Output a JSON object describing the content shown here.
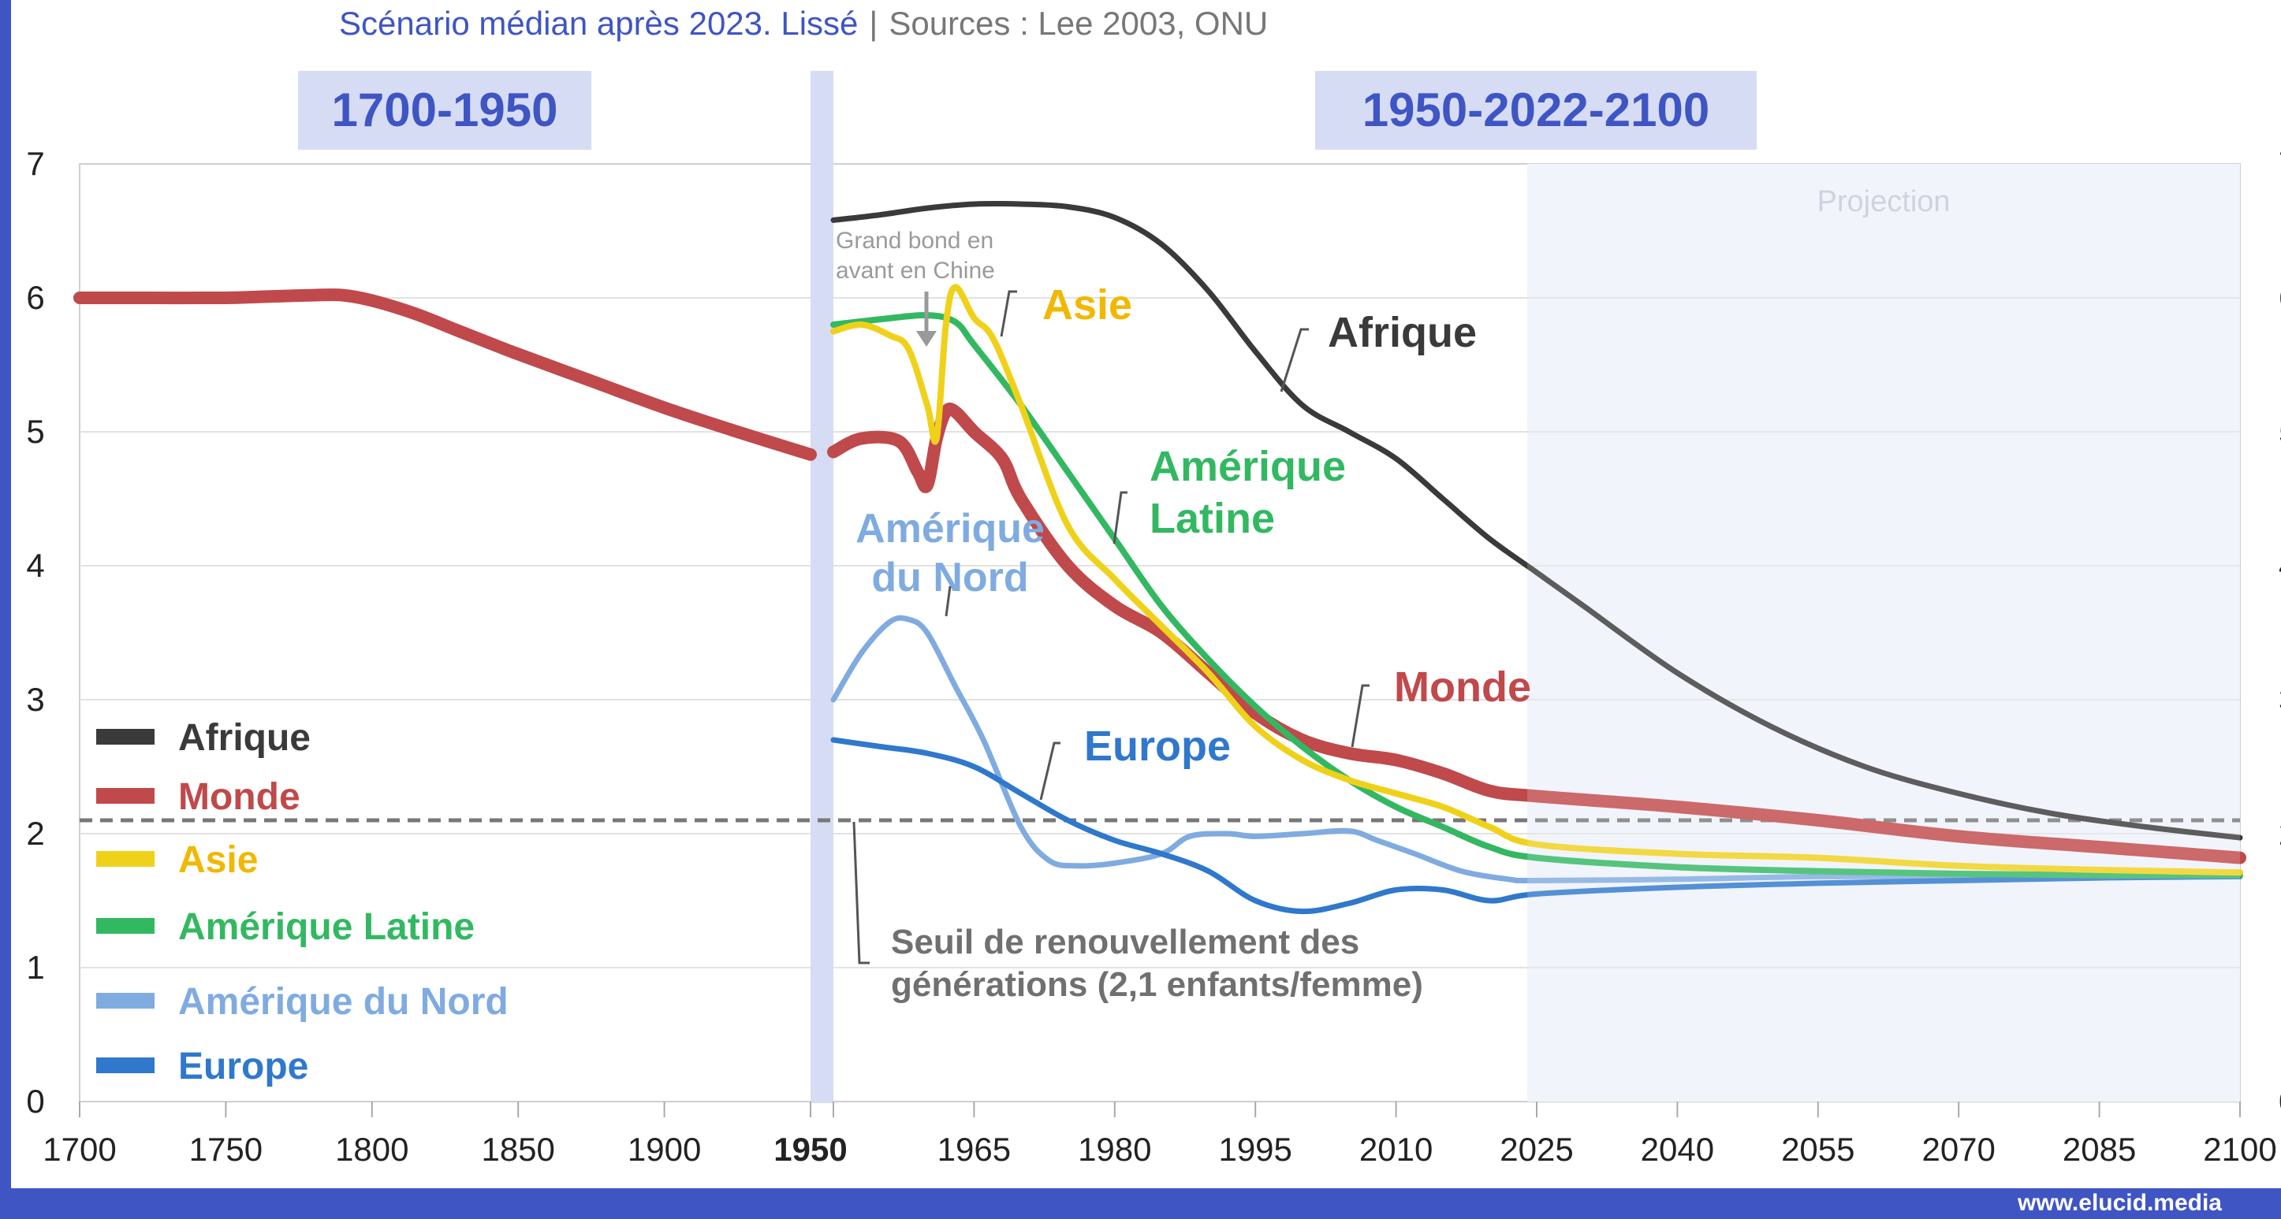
{
  "header": {
    "subtitle": "Scénario médian après 2023. Lissé",
    "separator": "|",
    "sources": "Sources : Lee 2003, ONU",
    "period_left": "1700-1950",
    "period_right": "1950-2022-2100"
  },
  "footer": {
    "brand": "www.elucid.media"
  },
  "colors": {
    "brand": "#3f55c4",
    "Afrique": "#3a3a3a",
    "Monde": "#c0494b",
    "Asie": "#f0d11a",
    "Asie_label": "#f0b800",
    "Amerique_Latine": "#33b862",
    "Amerique_du_Nord": "#7fabe0",
    "Europe": "#2f78cc",
    "threshold": "#777777",
    "projection_bg": "#eef2fa"
  },
  "chart_data": {
    "type": "line",
    "title": "",
    "subtitle": "Scénario médian après 2023. Lissé",
    "xlabel": "",
    "ylabel": "",
    "ylim": [
      0,
      7
    ],
    "yticks": [
      0,
      1,
      2,
      3,
      4,
      5,
      6,
      7
    ],
    "grid": true,
    "legend_position": "bottom-left",
    "panels": [
      {
        "label": "1700-1950",
        "xlim": [
          1700,
          1950
        ],
        "xticks": [
          1700,
          1750,
          1800,
          1850,
          1900,
          1950
        ]
      },
      {
        "label": "1950-2022-2100",
        "xlim": [
          1950,
          2100
        ],
        "xticks": [
          1950,
          1965,
          1980,
          1995,
          2010,
          2025,
          2040,
          2055,
          2070,
          2085,
          2100
        ]
      }
    ],
    "projection": {
      "label": "Projection",
      "from": 2024,
      "to": 2100
    },
    "threshold": {
      "value": 2.1,
      "label": "Seuil de renouvellement des générations (2,1 enfants/femme)"
    },
    "legend": [
      "Afrique",
      "Monde",
      "Asie",
      "Amérique Latine",
      "Amérique du Nord",
      "Europe"
    ],
    "series": [
      {
        "name": "Monde (1700-1950)",
        "key": "Monde",
        "x": [
          1700,
          1725,
          1750,
          1765,
          1780,
          1790,
          1800,
          1815,
          1830,
          1850,
          1875,
          1900,
          1925,
          1950
        ],
        "y": [
          6.0,
          6.0,
          6.0,
          6.01,
          6.02,
          6.02,
          5.98,
          5.88,
          5.75,
          5.58,
          5.38,
          5.18,
          5.0,
          4.83
        ]
      },
      {
        "name": "Afrique",
        "key": "Afrique",
        "x": [
          1950,
          1955,
          1960,
          1965,
          1970,
          1975,
          1980,
          1985,
          1990,
          1995,
          2000,
          2005,
          2010,
          2015,
          2020,
          2025,
          2030,
          2040,
          2050,
          2060,
          2070,
          2080,
          2090,
          2100
        ],
        "y": [
          6.58,
          6.62,
          6.67,
          6.7,
          6.7,
          6.68,
          6.6,
          6.4,
          6.05,
          5.6,
          5.2,
          5.0,
          4.8,
          4.5,
          4.2,
          3.95,
          3.7,
          3.2,
          2.8,
          2.5,
          2.3,
          2.15,
          2.05,
          1.97
        ]
      },
      {
        "name": "Monde",
        "key": "Monde",
        "x": [
          1950,
          1953,
          1957,
          1959,
          1960,
          1961,
          1962,
          1963,
          1965,
          1968,
          1970,
          1975,
          1980,
          1985,
          1990,
          1995,
          2000,
          2005,
          2010,
          2015,
          2020,
          2025,
          2040,
          2055,
          2070,
          2085,
          2100
        ],
        "y": [
          4.85,
          4.95,
          4.93,
          4.7,
          4.6,
          4.95,
          5.15,
          5.15,
          5.0,
          4.8,
          4.5,
          4.0,
          3.7,
          3.5,
          3.2,
          2.9,
          2.7,
          2.6,
          2.55,
          2.45,
          2.32,
          2.28,
          2.2,
          2.1,
          1.98,
          1.9,
          1.82
        ]
      },
      {
        "name": "Asie",
        "key": "Asie",
        "x": [
          1950,
          1953,
          1956,
          1958,
          1960,
          1961,
          1962,
          1963,
          1965,
          1967,
          1970,
          1975,
          1980,
          1985,
          1990,
          1995,
          2000,
          2005,
          2010,
          2015,
          2020,
          2025,
          2040,
          2055,
          2070,
          2085,
          2100
        ],
        "y": [
          5.75,
          5.8,
          5.72,
          5.62,
          5.2,
          4.95,
          5.8,
          6.08,
          5.85,
          5.7,
          5.2,
          4.3,
          3.9,
          3.55,
          3.2,
          2.8,
          2.55,
          2.4,
          2.3,
          2.2,
          2.05,
          1.92,
          1.85,
          1.82,
          1.76,
          1.73,
          1.71
        ]
      },
      {
        "name": "Amérique Latine",
        "key": "Amerique_Latine",
        "x": [
          1950,
          1955,
          1960,
          1963,
          1965,
          1970,
          1975,
          1980,
          1985,
          1990,
          1995,
          2000,
          2005,
          2010,
          2015,
          2020,
          2025,
          2040,
          2055,
          2070,
          2085,
          2100
        ],
        "y": [
          5.8,
          5.84,
          5.87,
          5.82,
          5.65,
          5.2,
          4.7,
          4.2,
          3.7,
          3.3,
          2.95,
          2.65,
          2.4,
          2.2,
          2.05,
          1.9,
          1.82,
          1.75,
          1.72,
          1.7,
          1.69,
          1.69
        ]
      },
      {
        "name": "Amérique du Nord",
        "key": "Amerique_du_Nord",
        "x": [
          1950,
          1953,
          1956,
          1958,
          1960,
          1963,
          1966,
          1970,
          1973,
          1976,
          1980,
          1985,
          1988,
          1992,
          1995,
          2000,
          2005,
          2008,
          2012,
          2017,
          2022,
          2025,
          2040,
          2055,
          2070,
          2085,
          2100
        ],
        "y": [
          3.0,
          3.35,
          3.58,
          3.6,
          3.5,
          3.1,
          2.7,
          2.05,
          1.8,
          1.76,
          1.78,
          1.85,
          1.98,
          2.0,
          1.98,
          2.0,
          2.02,
          1.95,
          1.85,
          1.72,
          1.66,
          1.65,
          1.66,
          1.68,
          1.68,
          1.69,
          1.69
        ]
      },
      {
        "name": "Europe",
        "key": "Europe",
        "x": [
          1950,
          1955,
          1960,
          1965,
          1970,
          1975,
          1980,
          1985,
          1990,
          1995,
          2000,
          2005,
          2010,
          2015,
          2020,
          2025,
          2040,
          2055,
          2070,
          2085,
          2100
        ],
        "y": [
          2.7,
          2.65,
          2.6,
          2.5,
          2.3,
          2.1,
          1.95,
          1.85,
          1.72,
          1.5,
          1.42,
          1.48,
          1.58,
          1.58,
          1.5,
          1.55,
          1.6,
          1.63,
          1.65,
          1.67,
          1.68
        ]
      }
    ],
    "annotations": [
      {
        "text": "Grand bond en avant en Chine",
        "lines": [
          "Grand bond en",
          "avant en Chine"
        ]
      },
      {
        "text": "Asie",
        "series": "Asie"
      },
      {
        "text": "Afrique",
        "series": "Afrique"
      },
      {
        "text": "Amérique Latine",
        "lines": [
          "Amérique",
          "Latine"
        ],
        "series": "Amerique_Latine"
      },
      {
        "text": "Amérique du Nord",
        "lines": [
          "Amérique",
          "du Nord"
        ],
        "series": "Amerique_du_Nord"
      },
      {
        "text": "Europe",
        "series": "Europe"
      },
      {
        "text": "Monde",
        "series": "Monde"
      },
      {
        "text": "Seuil de renouvellement des générations (2,1 enfants/femme)",
        "lines": [
          "Seuil de renouvellement des",
          "générations (2,1 enfants/femme)"
        ]
      }
    ]
  }
}
